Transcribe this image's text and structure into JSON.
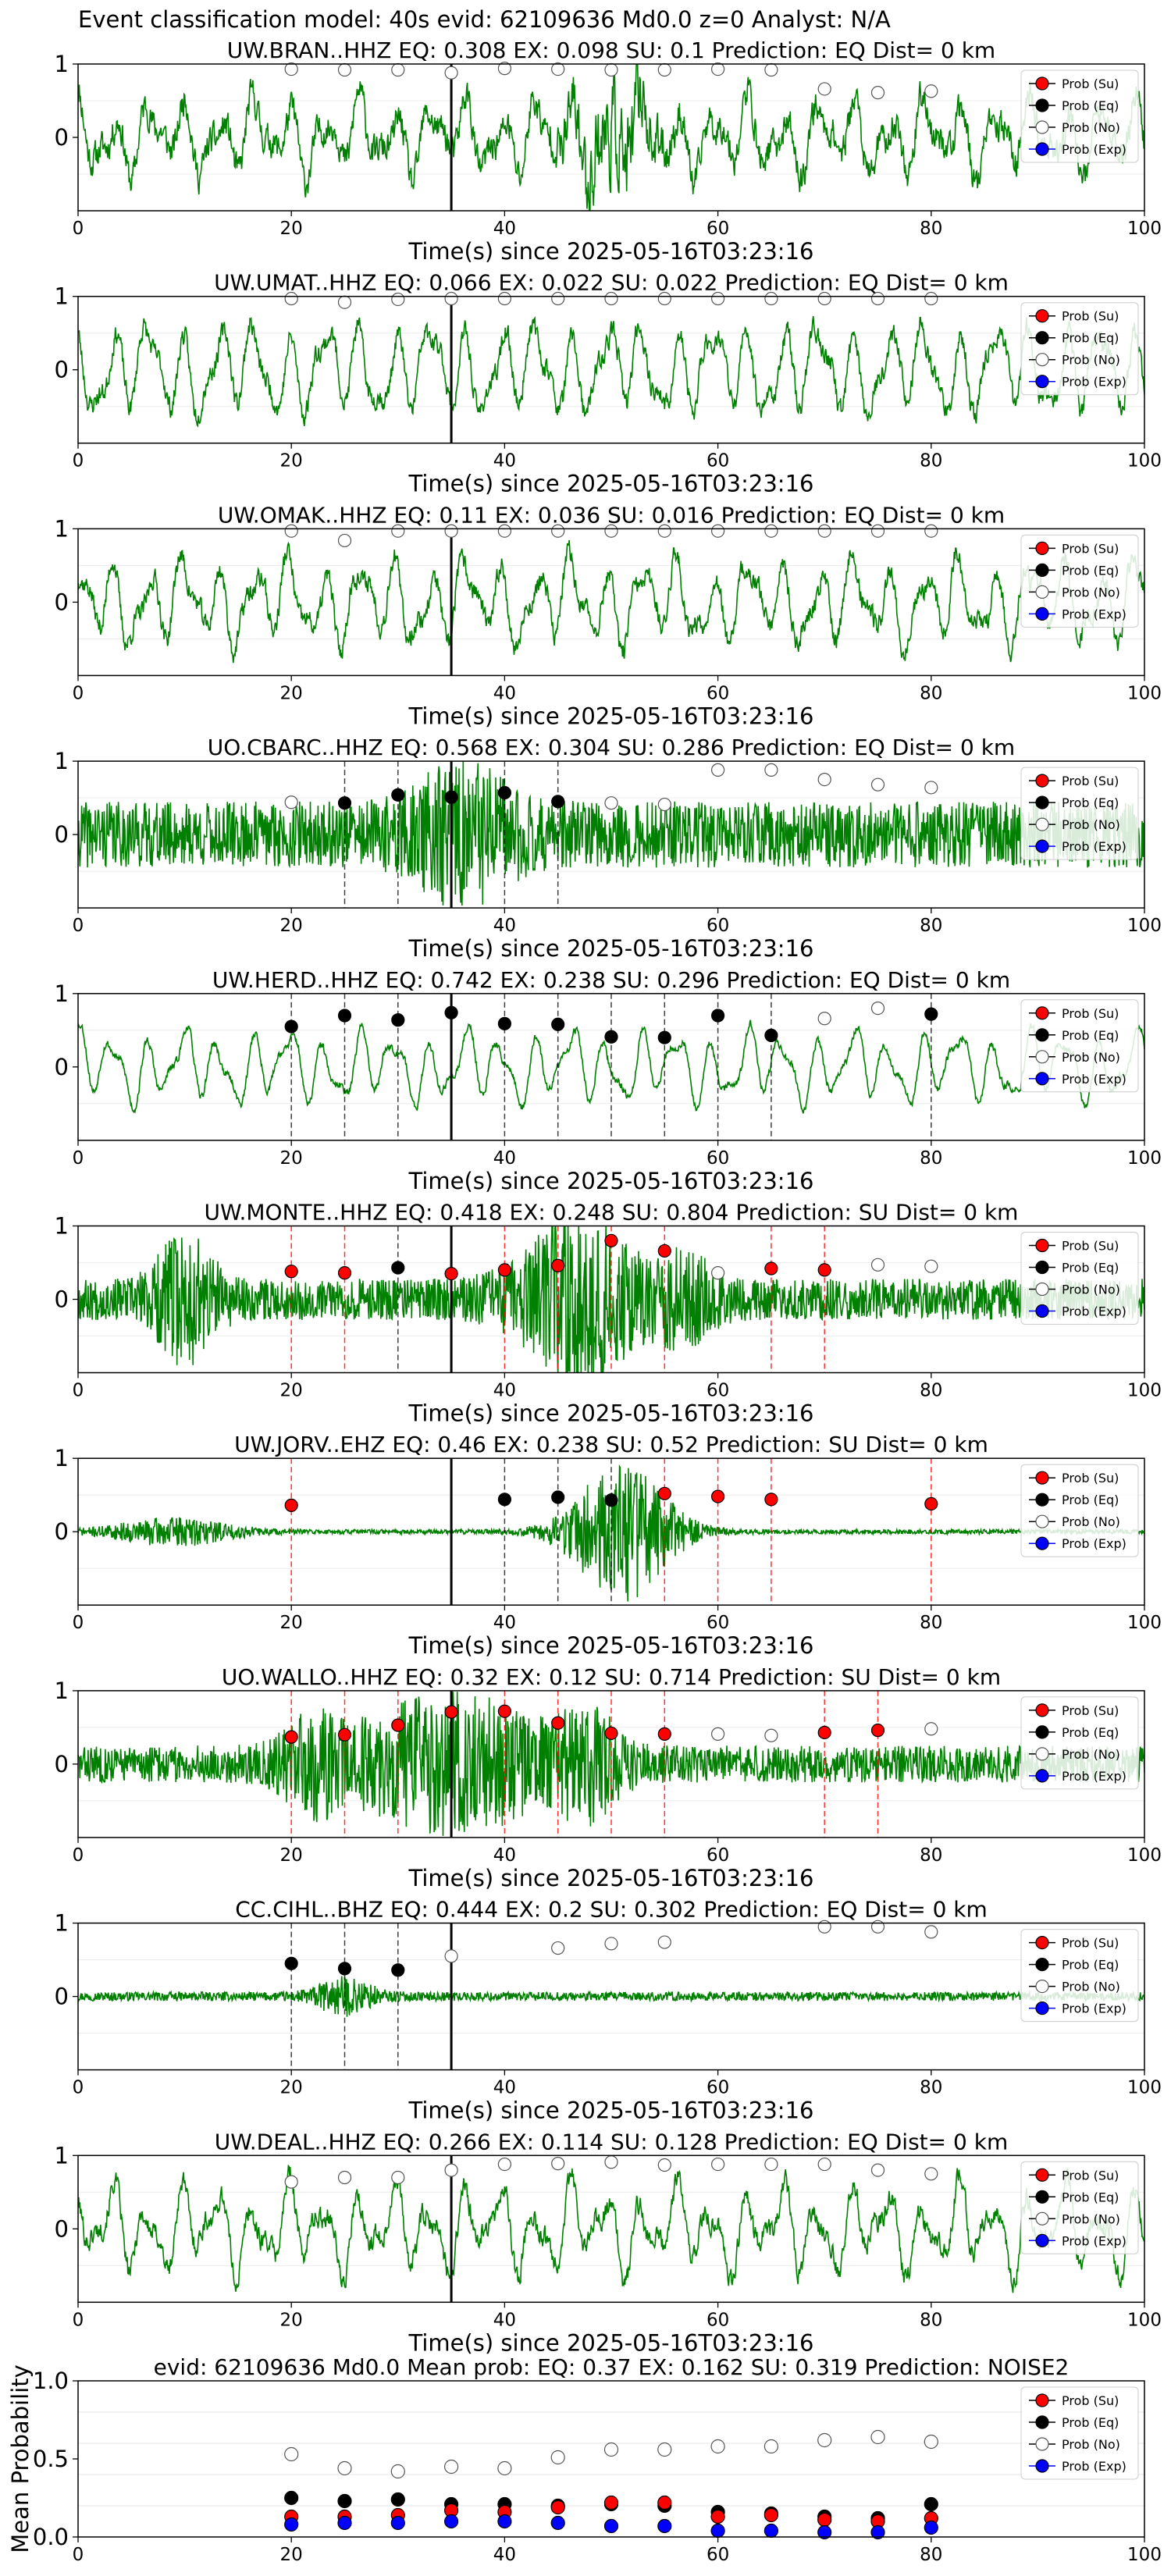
{
  "page_title": "Event classification model: 40s evid: 62109636 Md0.0 z=0 Analyst: N/A",
  "colors": {
    "trace": "#008000",
    "su": "#ff0000",
    "eq": "#000000",
    "no": "#ffffff",
    "exp": "#0000ff",
    "su_line": "#ff0000",
    "eq_line": "#000000",
    "pick_line": "#000000"
  },
  "legend_labels": [
    "Prob (Su)",
    "Prob (Eq)",
    "Prob (No)",
    "Prob (Exp)"
  ],
  "chart_data": [
    {
      "type": "line",
      "station": "UW.BRAN..HHZ",
      "title": "UW.BRAN..HHZ   EQ: 0.308  EX: 0.098  SU: 0.1   Prediction: EQ    Dist= 0 km",
      "xlabel": "Time(s) since 2025-05-16T03:23:16",
      "ylabel": "",
      "xlim": [
        0,
        100
      ],
      "ylim": [
        -1,
        1
      ],
      "xticks": [
        0,
        20,
        40,
        60,
        80,
        100
      ],
      "yticks": [
        1,
        0
      ],
      "pick_time": 35,
      "legend": "top-right",
      "noise": 0.22,
      "amp": 0.6,
      "lowfreq": true,
      "seed": 11,
      "bursts": [
        [
          50,
          4,
          0.5
        ]
      ],
      "windows": [
        {
          "x": 20,
          "cls": "no",
          "p": 0.93
        },
        {
          "x": 25,
          "cls": "no",
          "p": 0.92
        },
        {
          "x": 30,
          "cls": "no",
          "p": 0.92
        },
        {
          "x": 35,
          "cls": "no",
          "p": 0.88
        },
        {
          "x": 40,
          "cls": "no",
          "p": 0.94
        },
        {
          "x": 45,
          "cls": "no",
          "p": 0.93
        },
        {
          "x": 50,
          "cls": "no",
          "p": 0.92
        },
        {
          "x": 55,
          "cls": "no",
          "p": 0.92
        },
        {
          "x": 60,
          "cls": "no",
          "p": 0.93
        },
        {
          "x": 65,
          "cls": "no",
          "p": 0.92
        },
        {
          "x": 70,
          "cls": "no",
          "p": 0.66
        },
        {
          "x": 75,
          "cls": "no",
          "p": 0.61
        },
        {
          "x": 80,
          "cls": "no",
          "p": 0.63
        }
      ]
    },
    {
      "type": "line",
      "station": "UW.UMAT..HHZ",
      "title": "UW.UMAT..HHZ   EQ: 0.066  EX: 0.022  SU: 0.022   Prediction: EQ    Dist= 0 km",
      "xlabel": "Time(s) since 2025-05-16T03:23:16",
      "ylabel": "",
      "xlim": [
        0,
        100
      ],
      "ylim": [
        -1,
        1
      ],
      "xticks": [
        0,
        20,
        40,
        60,
        80,
        100
      ],
      "yticks": [
        1,
        0
      ],
      "pick_time": 35,
      "legend": "top-right",
      "noise": 0.15,
      "amp": 0.75,
      "lowfreq": true,
      "seed": 23,
      "bursts": [],
      "windows": [
        {
          "x": 20,
          "cls": "no",
          "p": 0.97
        },
        {
          "x": 25,
          "cls": "no",
          "p": 0.92
        },
        {
          "x": 30,
          "cls": "no",
          "p": 0.96
        },
        {
          "x": 35,
          "cls": "no",
          "p": 0.97
        },
        {
          "x": 40,
          "cls": "no",
          "p": 0.97
        },
        {
          "x": 45,
          "cls": "no",
          "p": 0.97
        },
        {
          "x": 50,
          "cls": "no",
          "p": 0.97
        },
        {
          "x": 55,
          "cls": "no",
          "p": 0.97
        },
        {
          "x": 60,
          "cls": "no",
          "p": 0.97
        },
        {
          "x": 65,
          "cls": "no",
          "p": 0.97
        },
        {
          "x": 70,
          "cls": "no",
          "p": 0.97
        },
        {
          "x": 75,
          "cls": "no",
          "p": 0.97
        },
        {
          "x": 80,
          "cls": "no",
          "p": 0.97
        }
      ]
    },
    {
      "type": "line",
      "station": "UW.OMAK..HHZ",
      "title": "UW.OMAK..HHZ   EQ: 0.11  EX: 0.036  SU: 0.016   Prediction: EQ    Dist= 0 km",
      "xlabel": "Time(s) since 2025-05-16T03:23:16",
      "ylabel": "",
      "xlim": [
        0,
        100
      ],
      "ylim": [
        -1,
        1
      ],
      "xticks": [
        0,
        20,
        40,
        60,
        80,
        100
      ],
      "yticks": [
        1,
        0
      ],
      "pick_time": 35,
      "legend": "top-right",
      "noise": 0.15,
      "amp": 0.7,
      "lowfreq": true,
      "seed": 37,
      "bursts": [],
      "windows": [
        {
          "x": 20,
          "cls": "no",
          "p": 0.97
        },
        {
          "x": 25,
          "cls": "no",
          "p": 0.84
        },
        {
          "x": 30,
          "cls": "no",
          "p": 0.97
        },
        {
          "x": 35,
          "cls": "no",
          "p": 0.97
        },
        {
          "x": 40,
          "cls": "no",
          "p": 0.97
        },
        {
          "x": 45,
          "cls": "no",
          "p": 0.97
        },
        {
          "x": 50,
          "cls": "no",
          "p": 0.97
        },
        {
          "x": 55,
          "cls": "no",
          "p": 0.97
        },
        {
          "x": 60,
          "cls": "no",
          "p": 0.97
        },
        {
          "x": 65,
          "cls": "no",
          "p": 0.97
        },
        {
          "x": 70,
          "cls": "no",
          "p": 0.97
        },
        {
          "x": 75,
          "cls": "no",
          "p": 0.97
        },
        {
          "x": 80,
          "cls": "no",
          "p": 0.97
        }
      ]
    },
    {
      "type": "line",
      "station": "UO.CBARC..HHZ",
      "title": "UO.CBARC..HHZ   EQ: 0.568  EX: 0.304  SU: 0.286   Prediction: EQ    Dist= 0 km",
      "xlabel": "Time(s) since 2025-05-16T03:23:16",
      "ylabel": "",
      "xlim": [
        0,
        100
      ],
      "ylim": [
        -1,
        1
      ],
      "xticks": [
        0,
        20,
        40,
        60,
        80,
        100
      ],
      "yticks": [
        1,
        0
      ],
      "pick_time": 35,
      "legend": "top-right",
      "noise": 0.45,
      "amp": 0.2,
      "lowfreq": false,
      "seed": 41,
      "bursts": [
        [
          36,
          5,
          0.6
        ]
      ],
      "windows": [
        {
          "x": 20,
          "cls": "no",
          "p": 0.44
        },
        {
          "x": 25,
          "cls": "eq",
          "p": 0.43
        },
        {
          "x": 30,
          "cls": "eq",
          "p": 0.54
        },
        {
          "x": 35,
          "cls": "eq",
          "p": 0.51
        },
        {
          "x": 40,
          "cls": "eq",
          "p": 0.57
        },
        {
          "x": 45,
          "cls": "eq",
          "p": 0.45
        },
        {
          "x": 50,
          "cls": "no",
          "p": 0.43
        },
        {
          "x": 55,
          "cls": "no",
          "p": 0.41
        },
        {
          "x": 60,
          "cls": "no",
          "p": 0.88
        },
        {
          "x": 65,
          "cls": "no",
          "p": 0.88
        },
        {
          "x": 70,
          "cls": "no",
          "p": 0.75
        },
        {
          "x": 75,
          "cls": "no",
          "p": 0.68
        },
        {
          "x": 80,
          "cls": "no",
          "p": 0.64
        }
      ]
    },
    {
      "type": "line",
      "station": "UW.HERD..HHZ",
      "title": "UW.HERD..HHZ   EQ: 0.742  EX: 0.238  SU: 0.296   Prediction: EQ    Dist= 0 km",
      "xlabel": "Time(s) since 2025-05-16T03:23:16",
      "ylabel": "",
      "xlim": [
        0,
        100
      ],
      "ylim": [
        -1,
        1
      ],
      "xticks": [
        0,
        20,
        40,
        60,
        80,
        100
      ],
      "yticks": [
        1,
        0
      ],
      "pick_time": 35,
      "legend": "top-right",
      "noise": 0.06,
      "amp": 0.6,
      "lowfreq": true,
      "seed": 53,
      "bursts": [],
      "windows": [
        {
          "x": 20,
          "cls": "eq",
          "p": 0.55
        },
        {
          "x": 25,
          "cls": "eq",
          "p": 0.7
        },
        {
          "x": 30,
          "cls": "eq",
          "p": 0.64
        },
        {
          "x": 35,
          "cls": "eq",
          "p": 0.74
        },
        {
          "x": 40,
          "cls": "eq",
          "p": 0.59
        },
        {
          "x": 45,
          "cls": "eq",
          "p": 0.58
        },
        {
          "x": 50,
          "cls": "eq",
          "p": 0.41
        },
        {
          "x": 55,
          "cls": "eq",
          "p": 0.4
        },
        {
          "x": 60,
          "cls": "eq",
          "p": 0.7
        },
        {
          "x": 65,
          "cls": "eq",
          "p": 0.43
        },
        {
          "x": 70,
          "cls": "no",
          "p": 0.66
        },
        {
          "x": 75,
          "cls": "no",
          "p": 0.8
        },
        {
          "x": 80,
          "cls": "eq",
          "p": 0.72
        }
      ]
    },
    {
      "type": "line",
      "station": "UW.MONTE..HHZ",
      "title": "UW.MONTE..HHZ   EQ: 0.418  EX: 0.248  SU: 0.804   Prediction: SU    Dist= 0 km",
      "xlabel": "Time(s) since 2025-05-16T03:23:16",
      "ylabel": "",
      "xlim": [
        0,
        100
      ],
      "ylim": [
        -1,
        1
      ],
      "xticks": [
        0,
        20,
        40,
        60,
        80,
        100
      ],
      "yticks": [
        1,
        0
      ],
      "pick_time": 35,
      "legend": "top-right",
      "noise": 0.28,
      "amp": 0.0,
      "lowfreq": false,
      "seed": 67,
      "bursts": [
        [
          10,
          3,
          0.7
        ],
        [
          47,
          6,
          0.9
        ],
        [
          57,
          3,
          0.4
        ]
      ],
      "windows": [
        {
          "x": 20,
          "cls": "su",
          "p": 0.38
        },
        {
          "x": 25,
          "cls": "su",
          "p": 0.36
        },
        {
          "x": 30,
          "cls": "eq",
          "p": 0.43
        },
        {
          "x": 35,
          "cls": "su",
          "p": 0.35
        },
        {
          "x": 40,
          "cls": "su",
          "p": 0.4
        },
        {
          "x": 45,
          "cls": "su",
          "p": 0.46
        },
        {
          "x": 50,
          "cls": "su",
          "p": 0.8
        },
        {
          "x": 55,
          "cls": "su",
          "p": 0.66
        },
        {
          "x": 60,
          "cls": "no",
          "p": 0.36
        },
        {
          "x": 65,
          "cls": "su",
          "p": 0.42
        },
        {
          "x": 70,
          "cls": "su",
          "p": 0.4
        },
        {
          "x": 75,
          "cls": "no",
          "p": 0.47
        },
        {
          "x": 80,
          "cls": "no",
          "p": 0.45
        }
      ]
    },
    {
      "type": "line",
      "station": "UW.JORV..EHZ",
      "title": "UW.JORV..EHZ   EQ: 0.46  EX: 0.238  SU: 0.52   Prediction: SU    Dist= 0 km",
      "xlabel": "Time(s) since 2025-05-16T03:23:16",
      "ylabel": "",
      "xlim": [
        0,
        100
      ],
      "ylim": [
        -1,
        1
      ],
      "xticks": [
        0,
        20,
        40,
        60,
        80,
        100
      ],
      "yticks": [
        1,
        0
      ],
      "pick_time": 35,
      "legend": "top-right",
      "noise": 0.03,
      "amp": 0.0,
      "lowfreq": false,
      "seed": 71,
      "bursts": [
        [
          9,
          6,
          0.18
        ],
        [
          51,
          5,
          0.95
        ]
      ],
      "windows": [
        {
          "x": 20,
          "cls": "su",
          "p": 0.36
        },
        {
          "x": 40,
          "cls": "eq",
          "p": 0.44
        },
        {
          "x": 45,
          "cls": "eq",
          "p": 0.47
        },
        {
          "x": 50,
          "cls": "eq",
          "p": 0.43
        },
        {
          "x": 55,
          "cls": "su",
          "p": 0.52
        },
        {
          "x": 60,
          "cls": "su",
          "p": 0.48
        },
        {
          "x": 65,
          "cls": "su",
          "p": 0.44
        },
        {
          "x": 80,
          "cls": "su",
          "p": 0.38
        }
      ]
    },
    {
      "type": "line",
      "station": "UO.WALLO..HHZ",
      "title": "UO.WALLO..HHZ   EQ: 0.32  EX: 0.12  SU: 0.714   Prediction: SU    Dist= 0 km",
      "xlabel": "Time(s) since 2025-05-16T03:23:16",
      "ylabel": "",
      "xlim": [
        0,
        100
      ],
      "ylim": [
        -1,
        1
      ],
      "xticks": [
        0,
        20,
        40,
        60,
        80,
        100
      ],
      "yticks": [
        1,
        0
      ],
      "pick_time": 35,
      "legend": "top-right",
      "noise": 0.25,
      "amp": 0.0,
      "lowfreq": false,
      "seed": 83,
      "bursts": [
        [
          35,
          10,
          0.75
        ],
        [
          22,
          3,
          0.4
        ],
        [
          48,
          3,
          0.5
        ]
      ],
      "windows": [
        {
          "x": 20,
          "cls": "su",
          "p": 0.37
        },
        {
          "x": 25,
          "cls": "su",
          "p": 0.4
        },
        {
          "x": 30,
          "cls": "su",
          "p": 0.53
        },
        {
          "x": 35,
          "cls": "su",
          "p": 0.71
        },
        {
          "x": 40,
          "cls": "su",
          "p": 0.72
        },
        {
          "x": 45,
          "cls": "su",
          "p": 0.56
        },
        {
          "x": 50,
          "cls": "su",
          "p": 0.42
        },
        {
          "x": 55,
          "cls": "su",
          "p": 0.41
        },
        {
          "x": 60,
          "cls": "no",
          "p": 0.41
        },
        {
          "x": 65,
          "cls": "no",
          "p": 0.39
        },
        {
          "x": 70,
          "cls": "su",
          "p": 0.43
        },
        {
          "x": 75,
          "cls": "su",
          "p": 0.46
        },
        {
          "x": 80,
          "cls": "no",
          "p": 0.48
        }
      ]
    },
    {
      "type": "line",
      "station": "CC.CIHL..BHZ",
      "title": "CC.CIHL..BHZ   EQ: 0.444  EX: 0.2  SU: 0.302   Prediction: EQ    Dist= 0 km",
      "xlabel": "Time(s) since 2025-05-16T03:23:16",
      "ylabel": "",
      "xlim": [
        0,
        100
      ],
      "ylim": [
        -1,
        1
      ],
      "xticks": [
        0,
        20,
        40,
        60,
        80,
        100
      ],
      "yticks": [
        1,
        0
      ],
      "pick_time": 35,
      "legend": "top-right",
      "noise": 0.06,
      "amp": 0.0,
      "lowfreq": false,
      "seed": 97,
      "bursts": [
        [
          25,
          3,
          0.22
        ]
      ],
      "windows": [
        {
          "x": 20,
          "cls": "eq",
          "p": 0.45
        },
        {
          "x": 25,
          "cls": "eq",
          "p": 0.38
        },
        {
          "x": 30,
          "cls": "eq",
          "p": 0.36
        },
        {
          "x": 35,
          "cls": "no",
          "p": 0.55
        },
        {
          "x": 45,
          "cls": "no",
          "p": 0.66
        },
        {
          "x": 50,
          "cls": "no",
          "p": 0.72
        },
        {
          "x": 55,
          "cls": "no",
          "p": 0.74
        },
        {
          "x": 70,
          "cls": "no",
          "p": 0.95
        },
        {
          "x": 75,
          "cls": "no",
          "p": 0.95
        },
        {
          "x": 80,
          "cls": "no",
          "p": 0.88
        }
      ]
    },
    {
      "type": "line",
      "station": "UW.DEAL..HHZ",
      "title": "UW.DEAL..HHZ   EQ: 0.266  EX: 0.114  SU: 0.128   Prediction: EQ    Dist= 0 km",
      "xlabel": "Time(s) since 2025-05-16T03:23:16",
      "ylabel": "",
      "xlim": [
        0,
        100
      ],
      "ylim": [
        -1,
        1
      ],
      "xticks": [
        0,
        20,
        40,
        60,
        80,
        100
      ],
      "yticks": [
        1,
        0
      ],
      "pick_time": 35,
      "legend": "top-right",
      "noise": 0.15,
      "amp": 0.7,
      "lowfreq": true,
      "seed": 101,
      "bursts": [],
      "windows": [
        {
          "x": 20,
          "cls": "no",
          "p": 0.64
        },
        {
          "x": 25,
          "cls": "no",
          "p": 0.7
        },
        {
          "x": 30,
          "cls": "no",
          "p": 0.7
        },
        {
          "x": 35,
          "cls": "no",
          "p": 0.8
        },
        {
          "x": 40,
          "cls": "no",
          "p": 0.88
        },
        {
          "x": 45,
          "cls": "no",
          "p": 0.89
        },
        {
          "x": 50,
          "cls": "no",
          "p": 0.91
        },
        {
          "x": 55,
          "cls": "no",
          "p": 0.87
        },
        {
          "x": 60,
          "cls": "no",
          "p": 0.88
        },
        {
          "x": 65,
          "cls": "no",
          "p": 0.88
        },
        {
          "x": 70,
          "cls": "no",
          "p": 0.88
        },
        {
          "x": 75,
          "cls": "no",
          "p": 0.8
        },
        {
          "x": 80,
          "cls": "no",
          "p": 0.75
        }
      ]
    },
    {
      "type": "scatter",
      "station": "mean",
      "title": "evid: 62109636  Md0.0   Mean prob:   EQ: 0.37  EX: 0.162  SU: 0.319   Prediction: NOISE2",
      "xlabel": "",
      "ylabel": "Mean Probability",
      "xlim": [
        0,
        100
      ],
      "ylim": [
        0,
        1
      ],
      "xticks": [
        0,
        20,
        40,
        60,
        80,
        100
      ],
      "yticks": [
        0.0,
        0.5,
        1.0
      ],
      "ytick_labels": [
        "0.0",
        "0.5",
        "1.0"
      ],
      "legend": "top-right",
      "x": [
        20,
        25,
        30,
        35,
        40,
        45,
        50,
        55,
        60,
        65,
        70,
        75,
        80
      ],
      "series": [
        {
          "name": "Prob (No)",
          "cls": "no",
          "values": [
            0.53,
            0.44,
            0.42,
            0.45,
            0.44,
            0.51,
            0.56,
            0.56,
            0.58,
            0.58,
            0.62,
            0.64,
            0.61
          ]
        },
        {
          "name": "Prob (Eq)",
          "cls": "eq",
          "values": [
            0.25,
            0.23,
            0.24,
            0.21,
            0.21,
            0.2,
            0.21,
            0.2,
            0.16,
            0.15,
            0.13,
            0.12,
            0.21
          ]
        },
        {
          "name": "Prob (Su)",
          "cls": "su",
          "values": [
            0.13,
            0.13,
            0.14,
            0.17,
            0.16,
            0.19,
            0.22,
            0.22,
            0.13,
            0.14,
            0.11,
            0.1,
            0.12
          ]
        },
        {
          "name": "Prob (Exp)",
          "cls": "exp",
          "values": [
            0.08,
            0.09,
            0.09,
            0.1,
            0.1,
            0.09,
            0.07,
            0.07,
            0.04,
            0.04,
            0.03,
            0.03,
            0.06
          ]
        }
      ]
    }
  ]
}
